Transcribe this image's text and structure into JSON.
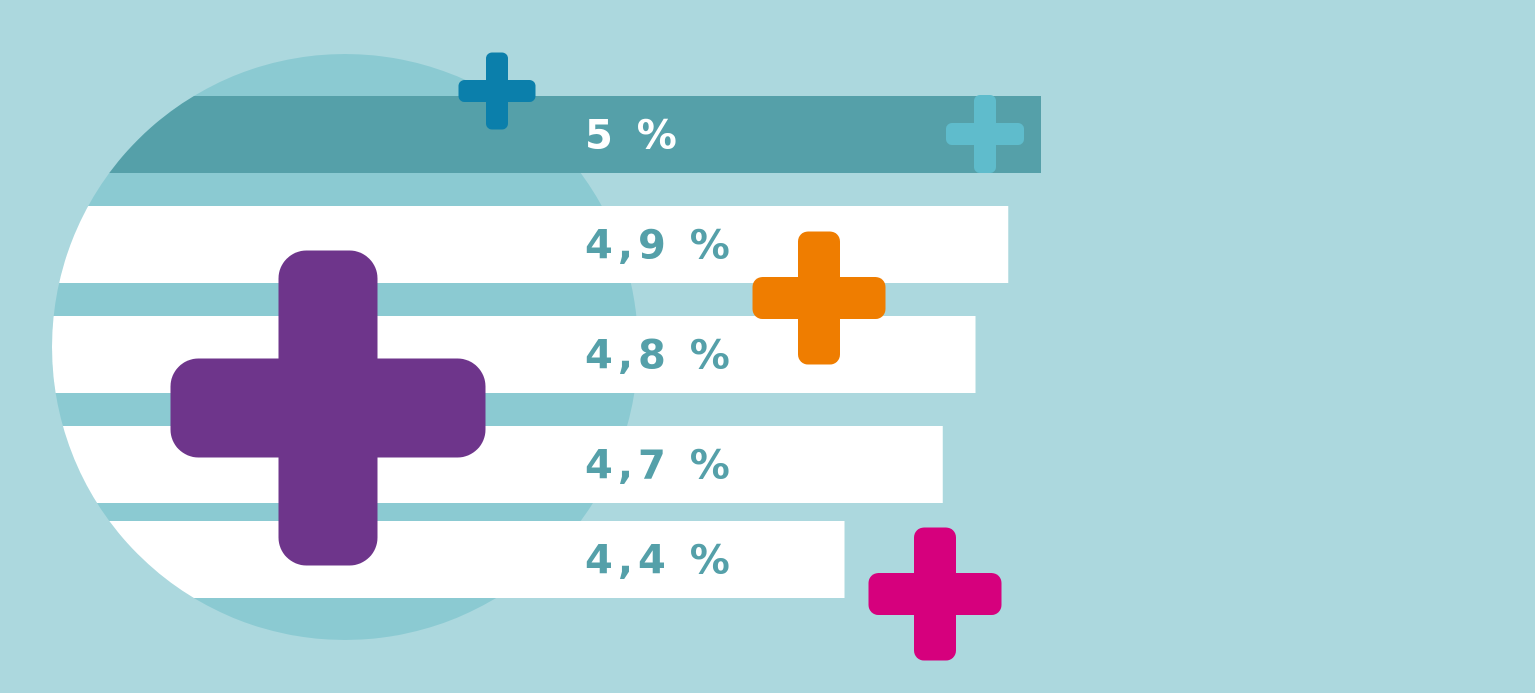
{
  "chart_data": {
    "type": "bar",
    "orientation": "horizontal",
    "title": "",
    "xlabel": "",
    "ylabel": "",
    "categories": [
      "",
      "",
      "",
      "",
      ""
    ],
    "values": [
      5.0,
      4.9,
      4.8,
      4.7,
      4.4
    ],
    "labels": [
      "5 %",
      "4,9 %",
      "4,8 %",
      "4,7 %",
      "4,4 %"
    ],
    "highlighted_index": 0,
    "grid": false,
    "legend": "none"
  },
  "colors": {
    "background": "#acd8de",
    "circle": "#8bcad2",
    "highlight_bar": "#55a0a9",
    "normal_bar": "#ffffff",
    "highlight_text": "#ffffff",
    "normal_text": "#55a0a9",
    "plus_purple": "#6e358b",
    "plus_orange": "#ef7d00",
    "plus_magenta": "#d6007d",
    "plus_dark_blue": "#0b7fab",
    "plus_light_blue": "#5fbccc"
  },
  "icons": [
    "plus-icon"
  ]
}
